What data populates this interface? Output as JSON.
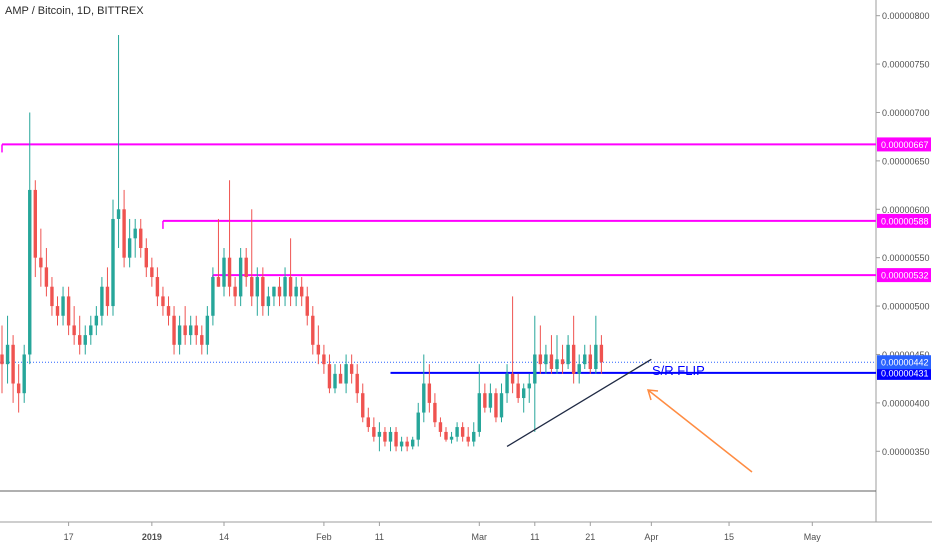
{
  "header": {
    "title": "AMP / Bitcoin, 1D, BITTREX"
  },
  "colors": {
    "up": "#26a69a",
    "down": "#ef5350",
    "resistance": "#ff00ff",
    "support": "#0000ff",
    "trendline": "#1f2a44",
    "arrow": "#ff8c42",
    "price_line": "#2962ff",
    "axis_text": "#505050"
  },
  "chart_data": {
    "type": "candlestick",
    "title": "AMP / Bitcoin, 1D, BITTREX",
    "ylim": [
      3.1e-06,
      8.1e-06
    ],
    "x_ticks": [
      "17",
      "2019",
      "14",
      "Feb",
      "11",
      "Mar",
      "11",
      "21",
      "Apr",
      "15",
      "May"
    ],
    "y_ticks": [
      "0.00000350",
      "0.00000400",
      "0.00000450",
      "0.00000500",
      "0.00000550",
      "0.00000600",
      "0.00000650",
      "0.00000700",
      "0.00000750",
      "0.00000800"
    ],
    "levels": [
      {
        "label": "0.00000667",
        "value": 6.67e-06,
        "kind": "resistance"
      },
      {
        "label": "0.00000588",
        "value": 5.88e-06,
        "kind": "resistance"
      },
      {
        "label": "0.00000532",
        "value": 5.32e-06,
        "kind": "resistance"
      },
      {
        "label": "0.00000431",
        "value": 4.31e-06,
        "kind": "support"
      }
    ],
    "last_price": {
      "label": "0.00000442",
      "value": 4.42e-06
    },
    "annotation": {
      "text": "S/R FLIP"
    },
    "candles": [
      {
        "d": "Dec 05",
        "o": 4.5,
        "h": 4.8,
        "l": 4.1,
        "c": 4.4
      },
      {
        "d": "Dec 06",
        "o": 4.4,
        "h": 4.9,
        "l": 4.2,
        "c": 4.6
      },
      {
        "d": "Dec 07",
        "o": 4.6,
        "h": 4.7,
        "l": 4.0,
        "c": 4.2
      },
      {
        "d": "Dec 08",
        "o": 4.2,
        "h": 4.4,
        "l": 3.9,
        "c": 4.1
      },
      {
        "d": "Dec 09",
        "o": 4.1,
        "h": 4.6,
        "l": 4.0,
        "c": 4.5
      },
      {
        "d": "Dec 10",
        "o": 4.5,
        "h": 7.0,
        "l": 4.4,
        "c": 6.2
      },
      {
        "d": "Dec 11",
        "o": 6.2,
        "h": 6.3,
        "l": 5.3,
        "c": 5.5
      },
      {
        "d": "Dec 12",
        "o": 5.5,
        "h": 5.8,
        "l": 5.2,
        "c": 5.4
      },
      {
        "d": "Dec 13",
        "o": 5.4,
        "h": 5.6,
        "l": 5.1,
        "c": 5.2
      },
      {
        "d": "Dec 14",
        "o": 5.2,
        "h": 5.3,
        "l": 4.9,
        "c": 5.0
      },
      {
        "d": "Dec 15",
        "o": 5.0,
        "h": 5.1,
        "l": 4.8,
        "c": 4.9
      },
      {
        "d": "Dec 16",
        "o": 4.9,
        "h": 5.2,
        "l": 4.8,
        "c": 5.1
      },
      {
        "d": "Dec 17",
        "o": 5.1,
        "h": 5.2,
        "l": 4.7,
        "c": 4.8
      },
      {
        "d": "Dec 18",
        "o": 4.8,
        "h": 5.0,
        "l": 4.6,
        "c": 4.7
      },
      {
        "d": "Dec 19",
        "o": 4.7,
        "h": 4.9,
        "l": 4.5,
        "c": 4.6
      },
      {
        "d": "Dec 20",
        "o": 4.6,
        "h": 4.8,
        "l": 4.5,
        "c": 4.7
      },
      {
        "d": "Dec 21",
        "o": 4.7,
        "h": 4.9,
        "l": 4.6,
        "c": 4.8
      },
      {
        "d": "Dec 22",
        "o": 4.8,
        "h": 5.0,
        "l": 4.7,
        "c": 4.9
      },
      {
        "d": "Dec 23",
        "o": 4.9,
        "h": 5.3,
        "l": 4.8,
        "c": 5.2
      },
      {
        "d": "Dec 24",
        "o": 5.2,
        "h": 5.4,
        "l": 4.9,
        "c": 5.0
      },
      {
        "d": "Dec 25",
        "o": 5.0,
        "h": 6.1,
        "l": 4.9,
        "c": 5.9
      },
      {
        "d": "Dec 26",
        "o": 5.9,
        "h": 7.8,
        "l": 5.6,
        "c": 6.0
      },
      {
        "d": "Dec 27",
        "o": 6.0,
        "h": 6.2,
        "l": 5.4,
        "c": 5.5
      },
      {
        "d": "Dec 28",
        "o": 5.5,
        "h": 5.9,
        "l": 5.4,
        "c": 5.7
      },
      {
        "d": "Dec 29",
        "o": 5.7,
        "h": 5.9,
        "l": 5.5,
        "c": 5.8
      },
      {
        "d": "Dec 30",
        "o": 5.8,
        "h": 5.9,
        "l": 5.5,
        "c": 5.6
      },
      {
        "d": "Dec 31",
        "o": 5.6,
        "h": 5.7,
        "l": 5.3,
        "c": 5.4
      },
      {
        "d": "Jan 01",
        "o": 5.4,
        "h": 5.5,
        "l": 5.2,
        "c": 5.3
      },
      {
        "d": "Jan 02",
        "o": 5.3,
        "h": 5.4,
        "l": 5.0,
        "c": 5.1
      },
      {
        "d": "Jan 03",
        "o": 5.1,
        "h": 5.2,
        "l": 4.9,
        "c": 5.0
      },
      {
        "d": "Jan 04",
        "o": 5.0,
        "h": 5.1,
        "l": 4.8,
        "c": 4.9
      },
      {
        "d": "Jan 05",
        "o": 4.9,
        "h": 5.0,
        "l": 4.5,
        "c": 4.6
      },
      {
        "d": "Jan 06",
        "o": 4.6,
        "h": 4.9,
        "l": 4.5,
        "c": 4.8
      },
      {
        "d": "Jan 07",
        "o": 4.8,
        "h": 5.0,
        "l": 4.6,
        "c": 4.7
      },
      {
        "d": "Jan 08",
        "o": 4.7,
        "h": 4.9,
        "l": 4.6,
        "c": 4.8
      },
      {
        "d": "Jan 09",
        "o": 4.8,
        "h": 4.9,
        "l": 4.6,
        "c": 4.7
      },
      {
        "d": "Jan 10",
        "o": 4.7,
        "h": 4.8,
        "l": 4.5,
        "c": 4.6
      },
      {
        "d": "Jan 11",
        "o": 4.6,
        "h": 5.0,
        "l": 4.5,
        "c": 4.9
      },
      {
        "d": "Jan 12",
        "o": 4.9,
        "h": 5.4,
        "l": 4.8,
        "c": 5.3
      },
      {
        "d": "Jan 13",
        "o": 5.3,
        "h": 5.9,
        "l": 5.2,
        "c": 5.2
      },
      {
        "d": "Jan 14",
        "o": 5.2,
        "h": 5.6,
        "l": 5.1,
        "c": 5.5
      },
      {
        "d": "Jan 15",
        "o": 5.5,
        "h": 6.3,
        "l": 5.1,
        "c": 5.2
      },
      {
        "d": "Jan 16",
        "o": 5.2,
        "h": 5.3,
        "l": 5.0,
        "c": 5.1
      },
      {
        "d": "Jan 17",
        "o": 5.1,
        "h": 5.6,
        "l": 5.0,
        "c": 5.5
      },
      {
        "d": "Jan 18",
        "o": 5.5,
        "h": 5.6,
        "l": 5.2,
        "c": 5.3
      },
      {
        "d": "Jan 19",
        "o": 5.3,
        "h": 6.0,
        "l": 5.0,
        "c": 5.1
      },
      {
        "d": "Jan 20",
        "o": 5.1,
        "h": 5.4,
        "l": 4.9,
        "c": 5.3
      },
      {
        "d": "Jan 21",
        "o": 5.3,
        "h": 5.4,
        "l": 4.9,
        "c": 5.0
      },
      {
        "d": "Jan 22",
        "o": 5.0,
        "h": 5.2,
        "l": 4.9,
        "c": 5.1
      },
      {
        "d": "Jan 23",
        "o": 5.1,
        "h": 5.2,
        "l": 5.0,
        "c": 5.2
      },
      {
        "d": "Jan 24",
        "o": 5.2,
        "h": 5.3,
        "l": 5.0,
        "c": 5.1
      },
      {
        "d": "Jan 25",
        "o": 5.1,
        "h": 5.4,
        "l": 5.0,
        "c": 5.3
      },
      {
        "d": "Jan 26",
        "o": 5.3,
        "h": 5.7,
        "l": 5.0,
        "c": 5.1
      },
      {
        "d": "Jan 27",
        "o": 5.1,
        "h": 5.3,
        "l": 5.0,
        "c": 5.2
      },
      {
        "d": "Jan 28",
        "o": 5.2,
        "h": 5.3,
        "l": 5.0,
        "c": 5.1
      },
      {
        "d": "Jan 29",
        "o": 5.1,
        "h": 5.2,
        "l": 4.8,
        "c": 4.9
      },
      {
        "d": "Jan 30",
        "o": 4.9,
        "h": 5.0,
        "l": 4.5,
        "c": 4.6
      },
      {
        "d": "Jan 31",
        "o": 4.6,
        "h": 4.8,
        "l": 4.4,
        "c": 4.5
      },
      {
        "d": "Feb 01",
        "o": 4.5,
        "h": 4.6,
        "l": 4.3,
        "c": 4.4
      },
      {
        "d": "Feb 02",
        "o": 4.4,
        "h": 4.5,
        "l": 4.1,
        "c": 4.15
      },
      {
        "d": "Feb 03",
        "o": 4.15,
        "h": 4.4,
        "l": 4.1,
        "c": 4.3
      },
      {
        "d": "Feb 04",
        "o": 4.3,
        "h": 4.4,
        "l": 4.2,
        "c": 4.2
      },
      {
        "d": "Feb 05",
        "o": 4.2,
        "h": 4.5,
        "l": 4.1,
        "c": 4.4
      },
      {
        "d": "Feb 06",
        "o": 4.4,
        "h": 4.5,
        "l": 4.2,
        "c": 4.3
      },
      {
        "d": "Feb 07",
        "o": 4.3,
        "h": 4.4,
        "l": 4.0,
        "c": 4.1
      },
      {
        "d": "Feb 08",
        "o": 4.1,
        "h": 4.2,
        "l": 3.8,
        "c": 3.85
      },
      {
        "d": "Feb 09",
        "o": 3.85,
        "h": 3.95,
        "l": 3.7,
        "c": 3.75
      },
      {
        "d": "Feb 10",
        "o": 3.75,
        "h": 3.85,
        "l": 3.6,
        "c": 3.65
      },
      {
        "d": "Feb 11",
        "o": 3.65,
        "h": 3.8,
        "l": 3.5,
        "c": 3.7
      },
      {
        "d": "Feb 12",
        "o": 3.7,
        "h": 3.75,
        "l": 3.55,
        "c": 3.6
      },
      {
        "d": "Feb 13",
        "o": 3.6,
        "h": 3.75,
        "l": 3.5,
        "c": 3.7
      },
      {
        "d": "Feb 14",
        "o": 3.7,
        "h": 3.75,
        "l": 3.5,
        "c": 3.55
      },
      {
        "d": "Feb 15",
        "o": 3.55,
        "h": 3.65,
        "l": 3.5,
        "c": 3.6
      },
      {
        "d": "Feb 16",
        "o": 3.6,
        "h": 3.65,
        "l": 3.5,
        "c": 3.55
      },
      {
        "d": "Feb 17",
        "o": 3.55,
        "h": 3.65,
        "l": 3.52,
        "c": 3.62
      },
      {
        "d": "Feb 18",
        "o": 3.62,
        "h": 4.0,
        "l": 3.55,
        "c": 3.9
      },
      {
        "d": "Feb 19",
        "o": 3.9,
        "h": 4.5,
        "l": 3.8,
        "c": 4.2
      },
      {
        "d": "Feb 20",
        "o": 4.2,
        "h": 4.4,
        "l": 3.9,
        "c": 4.0
      },
      {
        "d": "Feb 21",
        "o": 4.0,
        "h": 4.1,
        "l": 3.75,
        "c": 3.8
      },
      {
        "d": "Feb 22",
        "o": 3.8,
        "h": 3.85,
        "l": 3.65,
        "c": 3.7
      },
      {
        "d": "Feb 23",
        "o": 3.7,
        "h": 3.75,
        "l": 3.6,
        "c": 3.62
      },
      {
        "d": "Feb 24",
        "o": 3.62,
        "h": 3.7,
        "l": 3.58,
        "c": 3.65
      },
      {
        "d": "Feb 25",
        "o": 3.65,
        "h": 3.8,
        "l": 3.6,
        "c": 3.75
      },
      {
        "d": "Feb 26",
        "o": 3.75,
        "h": 3.8,
        "l": 3.6,
        "c": 3.65
      },
      {
        "d": "Feb 27",
        "o": 3.65,
        "h": 3.75,
        "l": 3.55,
        "c": 3.6
      },
      {
        "d": "Feb 28",
        "o": 3.6,
        "h": 3.8,
        "l": 3.55,
        "c": 3.7
      },
      {
        "d": "Mar 01",
        "o": 3.7,
        "h": 4.4,
        "l": 3.65,
        "c": 4.1
      },
      {
        "d": "Mar 02",
        "o": 4.1,
        "h": 4.2,
        "l": 3.9,
        "c": 3.95
      },
      {
        "d": "Mar 03",
        "o": 3.95,
        "h": 4.2,
        "l": 3.9,
        "c": 4.1
      },
      {
        "d": "Mar 04",
        "o": 4.1,
        "h": 4.15,
        "l": 3.8,
        "c": 3.85
      },
      {
        "d": "Mar 05",
        "o": 3.85,
        "h": 4.2,
        "l": 3.8,
        "c": 4.1
      },
      {
        "d": "Mar 06",
        "o": 4.1,
        "h": 4.4,
        "l": 4.0,
        "c": 4.3
      },
      {
        "d": "Mar 07",
        "o": 4.3,
        "h": 5.1,
        "l": 4.1,
        "c": 4.2
      },
      {
        "d": "Mar 08",
        "o": 4.2,
        "h": 4.3,
        "l": 4.0,
        "c": 4.05
      },
      {
        "d": "Mar 09",
        "o": 4.05,
        "h": 4.2,
        "l": 3.9,
        "c": 4.15
      },
      {
        "d": "Mar 10",
        "o": 4.15,
        "h": 4.3,
        "l": 4.0,
        "c": 4.2
      },
      {
        "d": "Mar 11",
        "o": 4.2,
        "h": 4.9,
        "l": 3.7,
        "c": 4.5
      },
      {
        "d": "Mar 12",
        "o": 4.5,
        "h": 4.8,
        "l": 4.3,
        "c": 4.4
      },
      {
        "d": "Mar 13",
        "o": 4.4,
        "h": 4.6,
        "l": 4.3,
        "c": 4.5
      },
      {
        "d": "Mar 14",
        "o": 4.5,
        "h": 4.7,
        "l": 4.3,
        "c": 4.35
      },
      {
        "d": "Mar 15",
        "o": 4.35,
        "h": 4.7,
        "l": 4.3,
        "c": 4.45
      },
      {
        "d": "Mar 16",
        "o": 4.45,
        "h": 4.6,
        "l": 4.3,
        "c": 4.4
      },
      {
        "d": "Mar 17",
        "o": 4.4,
        "h": 4.7,
        "l": 4.35,
        "c": 4.6
      },
      {
        "d": "Mar 18",
        "o": 4.6,
        "h": 4.9,
        "l": 4.2,
        "c": 4.3
      },
      {
        "d": "Mar 19",
        "o": 4.3,
        "h": 4.5,
        "l": 4.2,
        "c": 4.4
      },
      {
        "d": "Mar 20",
        "o": 4.4,
        "h": 4.6,
        "l": 4.35,
        "c": 4.5
      },
      {
        "d": "Mar 21",
        "o": 4.5,
        "h": 4.6,
        "l": 4.3,
        "c": 4.35
      },
      {
        "d": "Mar 22",
        "o": 4.35,
        "h": 4.9,
        "l": 4.3,
        "c": 4.6
      },
      {
        "d": "Mar 23",
        "o": 4.6,
        "h": 4.7,
        "l": 4.3,
        "c": 4.42
      }
    ]
  }
}
